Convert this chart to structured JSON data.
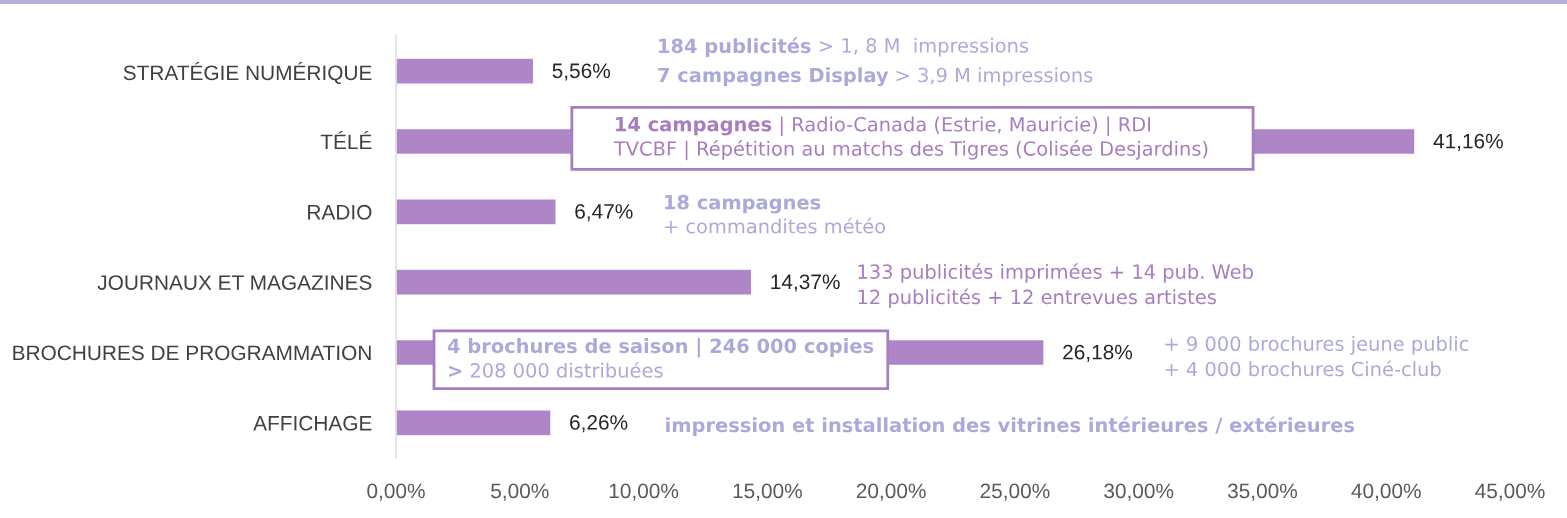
{
  "chart_data": {
    "type": "bar",
    "orientation": "horizontal",
    "categories": [
      "STRATÉGIE NUMÉRIQUE",
      "TÉLÉ",
      "RADIO",
      "JOURNAUX ET MAGAZINES",
      "BROCHURES DE PROGRAMMATION",
      "AFFICHAGE"
    ],
    "values": [
      5.56,
      41.16,
      6.47,
      14.37,
      26.18,
      6.26
    ],
    "value_labels": [
      "5,56%",
      "41,16%",
      "6,47%",
      "14,37%",
      "26,18%",
      "6,26%"
    ],
    "color": "#ae86c8",
    "xlim": [
      0,
      45
    ],
    "xticks": [
      {
        "value": 0,
        "label": "0,00%"
      },
      {
        "value": 5,
        "label": "5,00%"
      },
      {
        "value": 10,
        "label": "10,00%"
      },
      {
        "value": 15,
        "label": "15,00%"
      },
      {
        "value": 20,
        "label": "20,00%"
      },
      {
        "value": 25,
        "label": "25,00%"
      },
      {
        "value": 30,
        "label": "30,00%"
      },
      {
        "value": 35,
        "label": "35,00%"
      },
      {
        "value": 40,
        "label": "40,00%"
      },
      {
        "value": 45,
        "label": "45,00%"
      }
    ],
    "grid": false,
    "annotations": [
      "184 publicités",
      "> 1, 8 M  impressions",
      "7 campagnes Display",
      "> 3,9 M impressions",
      "14 campagnes",
      "| Radio-Canada (Estrie, Mauricie) | RDI",
      "TVCBF | Répétition au matchs des Tigres (Colisée Desjardins)",
      "18 campagnes",
      "+ commandites météo",
      "133 publicités imprimées + 14 pub. Web",
      "12 publicités + 12 entrevues artistes",
      "4 brochures de saison | 246 000 copies",
      ">",
      "208 000 distribuées",
      "+ 9 000 brochures jeune public",
      "+ 4 000 brochures Ciné-club",
      "impression et installation des vitrines intérieures / extérieures"
    ]
  }
}
